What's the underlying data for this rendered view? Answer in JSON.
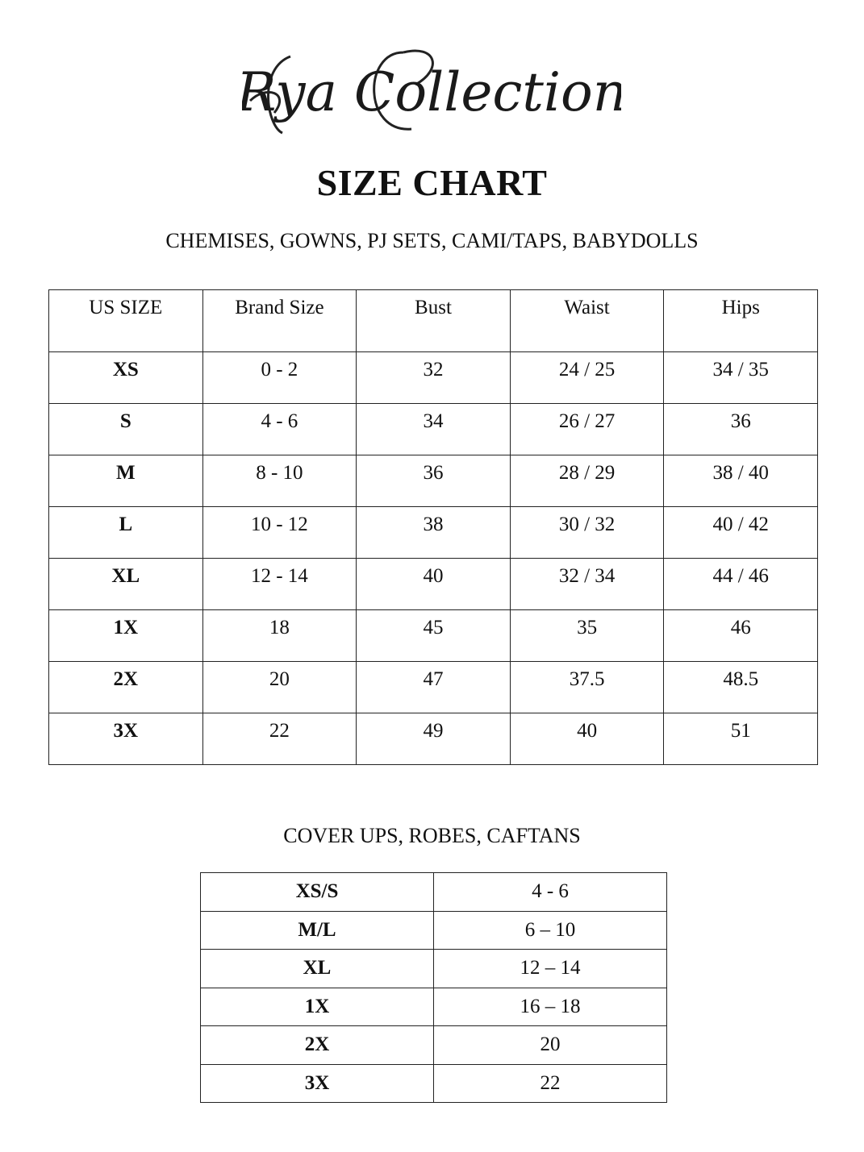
{
  "logo": {
    "text": "Rya Collection"
  },
  "title": "SIZE CHART",
  "section1": {
    "subtitle": "CHEMISES, GOWNS, PJ SETS, CAMI/TAPS, BABYDOLLS",
    "headers": [
      "US SIZE",
      "Brand Size",
      "Bust",
      "Waist",
      "Hips"
    ],
    "rows": [
      [
        "XS",
        "0 - 2",
        "32",
        "24 / 25",
        "34 / 35"
      ],
      [
        "S",
        "4 - 6",
        "34",
        "26 / 27",
        "36"
      ],
      [
        "M",
        "8 - 10",
        "36",
        "28 / 29",
        "38 / 40"
      ],
      [
        "L",
        "10 - 12",
        "38",
        "30 / 32",
        "40 / 42"
      ],
      [
        "XL",
        "12 - 14",
        "40",
        "32 / 34",
        "44 / 46"
      ],
      [
        "1X",
        "18",
        "45",
        "35",
        "46"
      ],
      [
        "2X",
        "20",
        "47",
        "37.5",
        "48.5"
      ],
      [
        "3X",
        "22",
        "49",
        "40",
        "51"
      ]
    ]
  },
  "section2": {
    "subtitle": "COVER UPS, ROBES, CAFTANS",
    "rows": [
      [
        "XS/S",
        "4 - 6"
      ],
      [
        "M/L",
        "6 – 10"
      ],
      [
        "XL",
        "12 – 14"
      ],
      [
        "1X",
        "16 – 18"
      ],
      [
        "2X",
        "20"
      ],
      [
        "3X",
        "22"
      ]
    ]
  }
}
